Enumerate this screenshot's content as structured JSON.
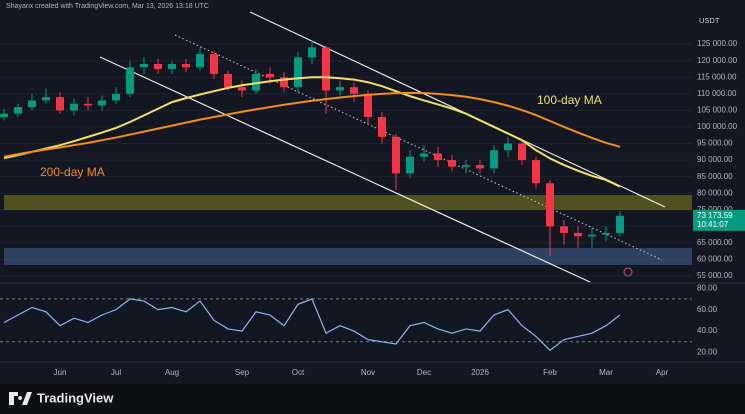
{
  "header": "Shayanx created with TradingView.com, Mar 13, 2026 13:18 UTC",
  "currency": "USDT",
  "logo": "TradingView",
  "chart_data": [
    {
      "type": "candlestick",
      "categories": [
        null,
        null,
        null,
        null,
        "Jun",
        null,
        null,
        null,
        "Jul",
        null,
        null,
        null,
        "Aug",
        null,
        null,
        null,
        null,
        "Sep",
        null,
        null,
        null,
        "Oct",
        null,
        null,
        null,
        null,
        "Nov",
        null,
        null,
        null,
        "Dec",
        null,
        null,
        null,
        "2026",
        null,
        null,
        null,
        null,
        "Feb",
        null,
        null,
        null,
        "Mar",
        null,
        null,
        null,
        "Apr"
      ],
      "open": [
        103000,
        104000,
        106000,
        108000,
        109000,
        105000,
        107000,
        106500,
        108000,
        110000,
        118000,
        119000,
        117500,
        119000,
        118000,
        122000,
        116000,
        112000,
        111000,
        116000,
        115000,
        112000,
        121000,
        124000,
        111000,
        112000,
        110000,
        103000,
        97000,
        86000,
        91000,
        92000,
        90000,
        88000,
        88500,
        87500,
        93000,
        95000,
        90000,
        83000,
        70000,
        68000,
        67000,
        67500,
        68000,
        null,
        null,
        null
      ],
      "high": [
        105500,
        107000,
        110000,
        111500,
        110500,
        108500,
        109000,
        109500,
        112000,
        120000,
        121000,
        120500,
        120000,
        120500,
        124000,
        123000,
        117000,
        114000,
        117500,
        118000,
        116500,
        122500,
        126000,
        124500,
        114000,
        113500,
        111000,
        104500,
        98000,
        93000,
        94500,
        94000,
        91500,
        90000,
        90000,
        94500,
        97000,
        96500,
        91000,
        84000,
        72000,
        70000,
        69500,
        70000,
        74500,
        null,
        null,
        null
      ],
      "low": [
        102000,
        103000,
        105000,
        107000,
        104000,
        103500,
        105000,
        105000,
        107000,
        109000,
        116000,
        116000,
        116000,
        116500,
        117000,
        114500,
        111000,
        109000,
        110000,
        113000,
        110500,
        110500,
        119000,
        104000,
        109500,
        107500,
        101000,
        95000,
        81000,
        84500,
        89500,
        88000,
        86500,
        86000,
        86000,
        86000,
        91000,
        88500,
        81500,
        61000,
        64500,
        63500,
        63500,
        65500,
        67000,
        null,
        null,
        null
      ],
      "close": [
        104000,
        106000,
        108000,
        109000,
        105000,
        107000,
        106500,
        108000,
        110000,
        118000,
        119000,
        117500,
        119000,
        118000,
        122000,
        116000,
        112000,
        111000,
        116000,
        115000,
        112000,
        121000,
        124000,
        111000,
        112000,
        110000,
        103000,
        97000,
        86000,
        91000,
        92000,
        90000,
        88000,
        88500,
        87500,
        93000,
        95000,
        90000,
        83000,
        70000,
        68000,
        67000,
        67500,
        68000,
        73173.59,
        null,
        null,
        null
      ],
      "up_color": "#089981",
      "down_color": "#f23645",
      "series": [
        {
          "name": "100-day MA",
          "color": "#f3e06a",
          "values": [
            90600,
            91500,
            92500,
            93500,
            94500,
            95700,
            97000,
            98300,
            99700,
            101500,
            103500,
            105500,
            107500,
            108700,
            109800,
            110800,
            111800,
            112600,
            113200,
            113800,
            114300,
            114700,
            115000,
            115000,
            114700,
            114300,
            113500,
            112300,
            110800,
            109300,
            108000,
            106800,
            105500,
            104000,
            102000,
            100000,
            98000,
            96000,
            93000,
            90500,
            88500,
            86800,
            85200,
            84000,
            82000,
            null,
            null,
            null
          ]
        },
        {
          "name": "200-day MA",
          "color": "#ef8f1f",
          "values": [
            91000,
            91800,
            92500,
            93200,
            93800,
            94500,
            95200,
            96000,
            96800,
            97700,
            98600,
            99500,
            100400,
            101300,
            102200,
            103000,
            103800,
            104600,
            105300,
            106000,
            106700,
            107300,
            107900,
            108400,
            108900,
            109300,
            109700,
            110000,
            110200,
            110300,
            110200,
            110000,
            109600,
            109100,
            108400,
            107500,
            106400,
            105100,
            103600,
            101800,
            100000,
            98300,
            96700,
            95200,
            94000,
            null,
            null,
            null
          ]
        }
      ],
      "last_price": {
        "value": 73173.59,
        "label": "73 173.59",
        "countdown": "10:41:07"
      },
      "ylim": [
        53200,
        135300
      ],
      "yticks": [
        {
          "value": 55000,
          "label": "55 000.00"
        },
        {
          "value": 60000,
          "label": "60 000.00"
        },
        {
          "value": 65000,
          "label": "65 000.00"
        },
        {
          "value": 70000,
          "label": "70 000.00"
        },
        {
          "value": 75000,
          "label": "75 000.00"
        },
        {
          "value": 80000,
          "label": "80 000.00"
        },
        {
          "value": 85000,
          "label": "85 000.00"
        },
        {
          "value": 90000,
          "label": "90 000.00"
        },
        {
          "value": 95000,
          "label": "95 000.00"
        },
        {
          "value": 100000,
          "label": "100 000.00"
        },
        {
          "value": 105000,
          "label": "105 000.00"
        },
        {
          "value": 110000,
          "label": "110 000.00"
        },
        {
          "value": 115000,
          "label": "115 000.00"
        },
        {
          "value": 120000,
          "label": "120 000.00"
        },
        {
          "value": 125000,
          "label": "125 000.00"
        }
      ],
      "grid": true
    },
    {
      "type": "line",
      "color": "#8fb4f0",
      "values": [
        48,
        55,
        62,
        58,
        45,
        52,
        48,
        55,
        60,
        70,
        68,
        60,
        62,
        58,
        68,
        50,
        42,
        40,
        58,
        55,
        45,
        65,
        70,
        38,
        45,
        40,
        32,
        30,
        28,
        45,
        48,
        42,
        38,
        42,
        40,
        55,
        60,
        45,
        35,
        22,
        32,
        35,
        38,
        45,
        55,
        null,
        null,
        null
      ],
      "bands": [
        30,
        70
      ],
      "ylim": [
        13,
        83
      ],
      "yticks": [
        {
          "value": 20,
          "label": "20.00"
        },
        {
          "value": 40,
          "label": "40.00"
        },
        {
          "value": 60,
          "label": "60.00"
        },
        {
          "value": 80,
          "label": "80.00"
        }
      ]
    }
  ]
}
